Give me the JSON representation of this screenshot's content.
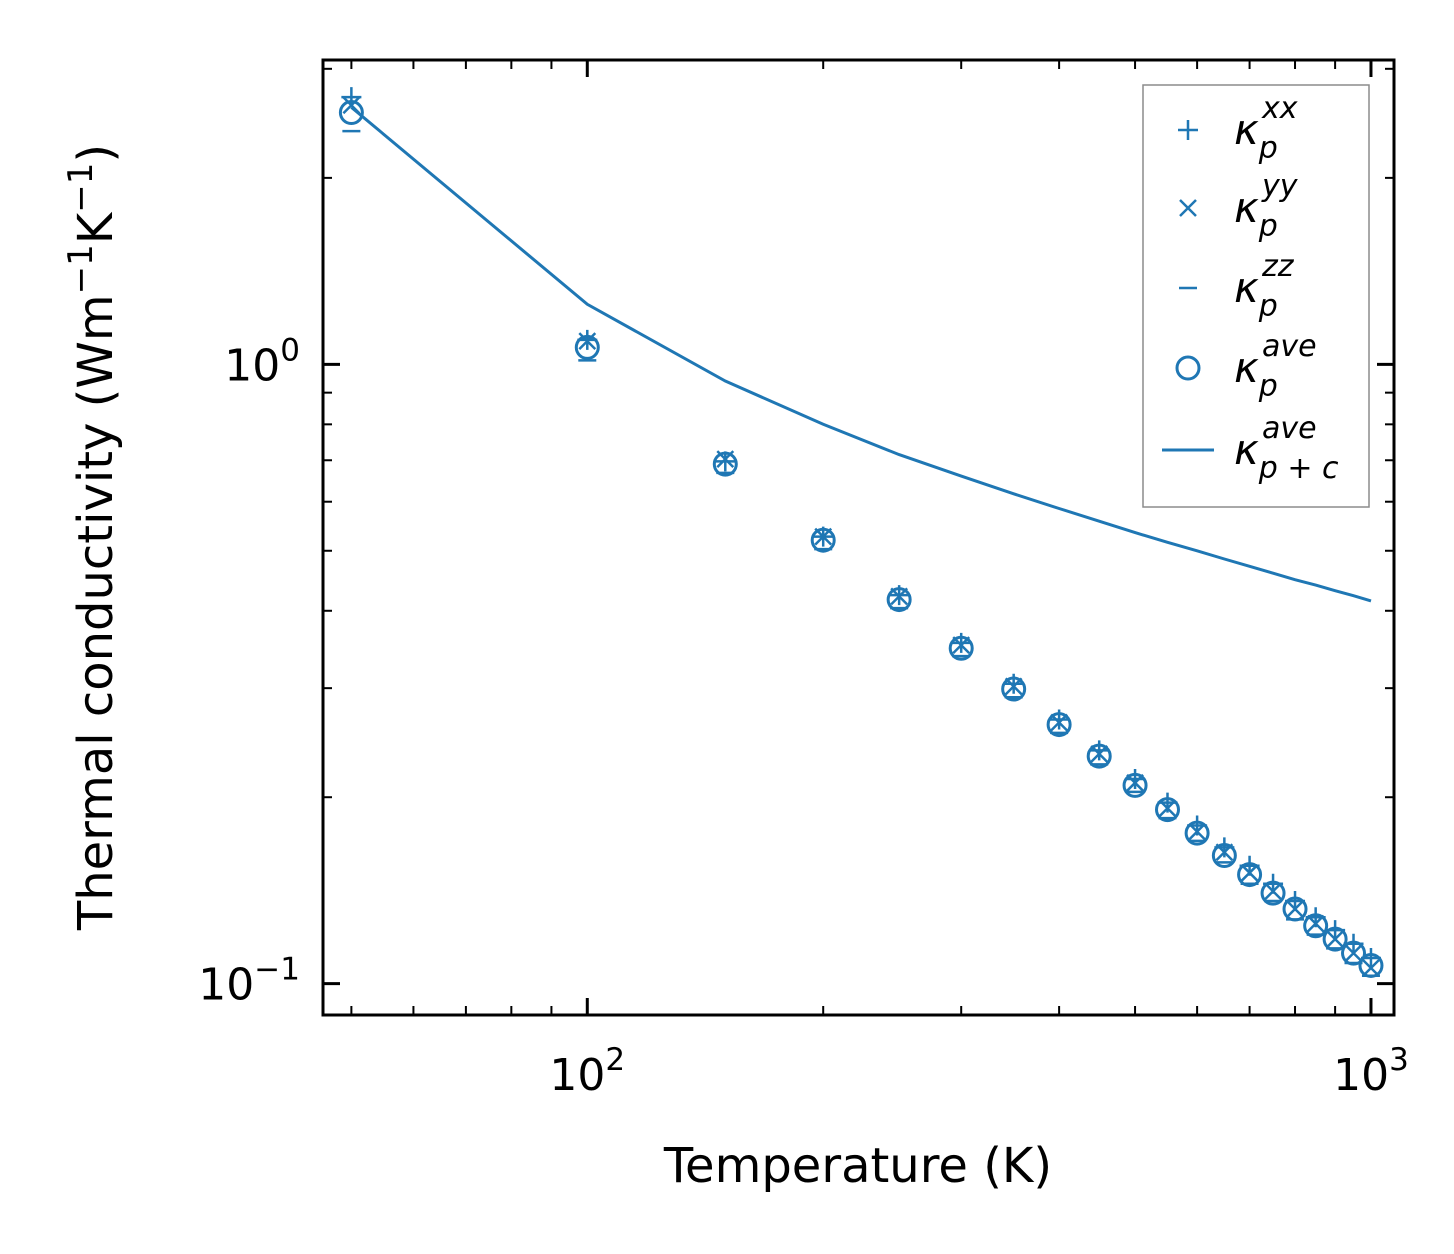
{
  "chart_data": {
    "type": "scatter",
    "xscale": "log",
    "yscale": "log",
    "xlim": [
      46,
      1070
    ],
    "ylim": [
      0.089,
      3.1
    ],
    "xlabel": "Temperature (K)",
    "ylabel_parts": {
      "main": "Thermal conductivity (Wm",
      "sup1": "−1",
      "mid": "K",
      "sup2": "−1",
      "end": ")"
    },
    "xticks": [
      {
        "value": 100,
        "base": "10",
        "exp": "2"
      },
      {
        "value": 1000,
        "base": "10",
        "exp": "3"
      }
    ],
    "yticks": [
      {
        "value": 0.1,
        "base": "10",
        "exp": "−1"
      },
      {
        "value": 1,
        "base": "10",
        "exp": "0"
      }
    ],
    "grid": false,
    "legend_position": "top-right",
    "color": "#1f77b4",
    "x": [
      50,
      100,
      150,
      200,
      250,
      300,
      350,
      400,
      450,
      500,
      550,
      600,
      650,
      700,
      750,
      800,
      850,
      900,
      950,
      1000
    ],
    "series": [
      {
        "name": "κ_p^xx",
        "marker": "plus",
        "values": [
          2.7,
          1.095,
          0.697,
          0.527,
          0.424,
          0.355,
          0.305,
          0.267,
          0.238,
          0.214,
          0.196,
          0.18,
          0.166,
          0.155,
          0.145,
          0.136,
          0.128,
          0.122,
          0.116,
          0.11
        ]
      },
      {
        "name": "κ_p^yy",
        "marker": "x",
        "values": [
          2.62,
          1.09,
          0.703,
          0.527,
          0.422,
          0.352,
          0.302,
          0.264,
          0.235,
          0.211,
          0.192,
          0.176,
          0.163,
          0.151,
          0.141,
          0.132,
          0.125,
          0.118,
          0.112,
          0.106
        ]
      },
      {
        "name": "κ_p^zz",
        "marker": "hline",
        "values": [
          2.38,
          1.015,
          0.668,
          0.503,
          0.404,
          0.338,
          0.29,
          0.254,
          0.226,
          0.204,
          0.185,
          0.17,
          0.157,
          0.145,
          0.136,
          0.127,
          0.12,
          0.114,
          0.108,
          0.103
        ]
      },
      {
        "name": "κ_p^ave",
        "marker": "circle",
        "values": [
          2.55,
          1.065,
          0.69,
          0.52,
          0.417,
          0.348,
          0.299,
          0.262,
          0.233,
          0.209,
          0.191,
          0.175,
          0.161,
          0.15,
          0.14,
          0.132,
          0.124,
          0.118,
          0.112,
          0.107
        ]
      },
      {
        "name": "κ_p+c^ave",
        "marker": "line",
        "x": [
          50,
          100,
          150,
          200,
          250,
          300,
          350,
          400,
          450,
          500,
          550,
          600,
          650,
          700,
          750,
          800,
          850,
          900,
          950,
          1000
        ],
        "values": [
          2.6,
          1.25,
          0.94,
          0.8,
          0.715,
          0.66,
          0.618,
          0.585,
          0.558,
          0.535,
          0.516,
          0.5,
          0.485,
          0.472,
          0.46,
          0.449,
          0.44,
          0.431,
          0.423,
          0.415
        ]
      }
    ],
    "legend": [
      {
        "marker": "plus",
        "base": "κ",
        "sub": "p",
        "sup": "xx"
      },
      {
        "marker": "x",
        "base": "κ",
        "sub": "p",
        "sup": "yy"
      },
      {
        "marker": "hline",
        "base": "κ",
        "sub": "p",
        "sup": "zz"
      },
      {
        "marker": "circle",
        "base": "κ",
        "sub": "p",
        "sup": "ave"
      },
      {
        "marker": "line",
        "base": "κ",
        "sub": "p + c",
        "sup": "ave"
      }
    ]
  }
}
